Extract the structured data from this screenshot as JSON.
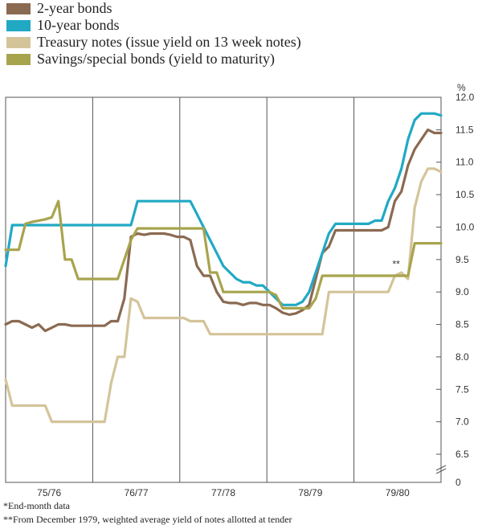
{
  "legend": [
    {
      "label": "2-year bonds",
      "color": "#8b6a52"
    },
    {
      "label": "10-year bonds",
      "color": "#21a9c4"
    },
    {
      "label": "Treasury notes (issue yield on 13 week notes)",
      "color": "#d4c49a"
    },
    {
      "label": "Savings/special bonds (yield to maturity)",
      "color": "#a8a44e"
    }
  ],
  "notes": {
    "end_month": "*End-month data",
    "december": "**From December 1979, weighted average yield of notes allotted at tender",
    "marker": "**"
  },
  "chart_data": {
    "type": "line",
    "title": "",
    "xlabel": "",
    "ylabel": "%",
    "ylim": [
      6.5,
      12.0
    ],
    "y_ticks": [
      12.0,
      11.5,
      11.0,
      10.5,
      10.0,
      9.5,
      9.0,
      8.5,
      8.0,
      7.5,
      7.0,
      6.5
    ],
    "y_zero_label": "0",
    "xlim": [
      0,
      66
    ],
    "x_periods": [
      "75/76",
      "76/77",
      "77/78",
      "78/79",
      "79/80"
    ],
    "series": [
      {
        "name": "2-year bonds",
        "color": "#8b6a52",
        "x": [
          0,
          1,
          2,
          3,
          4,
          5,
          6,
          7,
          8,
          9,
          10,
          11,
          12,
          13,
          14,
          15,
          16,
          17,
          18,
          19,
          20,
          21,
          22,
          23,
          24,
          25,
          26,
          27,
          28,
          29,
          30,
          31,
          32,
          33,
          34,
          35,
          36,
          37,
          38,
          39,
          40,
          41,
          42,
          43,
          44,
          45,
          46,
          47,
          48,
          49,
          50,
          51,
          52,
          53,
          54,
          55,
          56,
          57,
          58,
          59,
          60,
          61,
          62,
          63,
          64,
          65,
          66
        ],
        "values": [
          8.5,
          8.55,
          8.55,
          8.5,
          8.45,
          8.5,
          8.4,
          8.45,
          8.5,
          8.5,
          8.48,
          8.48,
          8.48,
          8.48,
          8.48,
          8.48,
          8.55,
          8.55,
          8.9,
          9.85,
          9.9,
          9.88,
          9.9,
          9.9,
          9.9,
          9.88,
          9.85,
          9.85,
          9.8,
          9.4,
          9.25,
          9.25,
          9.0,
          8.85,
          8.83,
          8.83,
          8.8,
          8.83,
          8.83,
          8.8,
          8.8,
          8.75,
          8.68,
          8.65,
          8.67,
          8.72,
          8.8,
          9.2,
          9.6,
          9.7,
          9.95,
          9.95,
          9.95,
          9.95,
          9.95,
          9.95,
          9.95,
          9.95,
          10.0,
          10.4,
          10.55,
          10.95,
          11.2,
          11.35,
          11.5,
          11.45,
          11.45
        ]
      },
      {
        "name": "10-year bonds",
        "color": "#21a9c4",
        "x": [
          0,
          1,
          2,
          3,
          4,
          5,
          6,
          7,
          8,
          9,
          10,
          11,
          12,
          13,
          14,
          15,
          16,
          17,
          18,
          19,
          20,
          21,
          22,
          23,
          24,
          25,
          26,
          27,
          28,
          29,
          30,
          31,
          32,
          33,
          34,
          35,
          36,
          37,
          38,
          39,
          40,
          41,
          42,
          43,
          44,
          45,
          46,
          47,
          48,
          49,
          50,
          51,
          52,
          53,
          54,
          55,
          56,
          57,
          58,
          59,
          60,
          61,
          62,
          63,
          64,
          65,
          66
        ],
        "values": [
          9.4,
          10.03,
          10.03,
          10.03,
          10.03,
          10.03,
          10.03,
          10.03,
          10.03,
          10.03,
          10.03,
          10.03,
          10.03,
          10.03,
          10.03,
          10.03,
          10.03,
          10.03,
          10.03,
          10.03,
          10.4,
          10.4,
          10.4,
          10.4,
          10.4,
          10.4,
          10.4,
          10.4,
          10.4,
          10.2,
          10.0,
          9.8,
          9.6,
          9.4,
          9.3,
          9.2,
          9.15,
          9.15,
          9.1,
          9.1,
          9.0,
          8.9,
          8.8,
          8.8,
          8.8,
          8.85,
          9.0,
          9.3,
          9.6,
          9.9,
          10.05,
          10.05,
          10.05,
          10.05,
          10.05,
          10.05,
          10.1,
          10.1,
          10.4,
          10.6,
          10.9,
          11.35,
          11.65,
          11.75,
          11.75,
          11.75,
          11.72
        ]
      },
      {
        "name": "Treasury notes (issue yield on 13 week notes)",
        "color": "#d4c49a",
        "x": [
          0,
          1,
          2,
          3,
          4,
          5,
          6,
          7,
          8,
          9,
          10,
          11,
          12,
          13,
          14,
          15,
          16,
          17,
          18,
          19,
          20,
          21,
          22,
          23,
          24,
          25,
          26,
          27,
          28,
          29,
          30,
          31,
          32,
          33,
          34,
          35,
          36,
          37,
          38,
          39,
          40,
          41,
          42,
          43,
          44,
          45,
          46,
          47,
          48,
          49,
          50,
          51,
          52,
          53,
          54,
          55,
          56,
          57,
          58,
          59,
          60,
          61,
          62,
          63,
          64,
          65,
          66
        ],
        "values": [
          7.65,
          7.25,
          7.25,
          7.25,
          7.25,
          7.25,
          7.25,
          7.0,
          7.0,
          7.0,
          7.0,
          7.0,
          7.0,
          7.0,
          7.0,
          7.0,
          7.6,
          8.0,
          8.0,
          8.9,
          8.85,
          8.6,
          8.6,
          8.6,
          8.6,
          8.6,
          8.6,
          8.6,
          8.55,
          8.55,
          8.55,
          8.35,
          8.35,
          8.35,
          8.35,
          8.35,
          8.35,
          8.35,
          8.35,
          8.35,
          8.35,
          8.35,
          8.35,
          8.35,
          8.35,
          8.35,
          8.35,
          8.35,
          8.35,
          9.0,
          9.0,
          9.0,
          9.0,
          9.0,
          9.0,
          9.0,
          9.0,
          9.0,
          9.0,
          9.25,
          9.3,
          9.2,
          10.3,
          10.7,
          10.9,
          10.9,
          10.85
        ]
      },
      {
        "name": "Savings/special bonds (yield to maturity)",
        "color": "#a8a44e",
        "x": [
          0,
          1,
          2,
          3,
          4,
          5,
          6,
          7,
          8,
          9,
          10,
          11,
          12,
          13,
          14,
          15,
          16,
          17,
          18,
          19,
          20,
          21,
          22,
          23,
          24,
          25,
          26,
          27,
          28,
          29,
          30,
          31,
          32,
          33,
          34,
          35,
          36,
          37,
          38,
          39,
          40,
          41,
          42,
          43,
          44,
          45,
          46,
          47,
          48,
          49,
          50,
          51,
          52,
          53,
          54,
          55,
          56,
          57,
          58,
          59,
          60,
          61,
          62,
          63,
          64,
          65,
          66
        ],
        "values": [
          9.65,
          9.65,
          9.65,
          10.05,
          10.08,
          10.1,
          10.12,
          10.15,
          10.4,
          9.5,
          9.5,
          9.2,
          9.2,
          9.2,
          9.2,
          9.2,
          9.2,
          9.2,
          9.5,
          9.8,
          9.98,
          9.98,
          9.98,
          9.98,
          9.98,
          9.98,
          9.98,
          9.98,
          9.98,
          9.98,
          9.98,
          9.3,
          9.3,
          9.0,
          9.0,
          9.0,
          9.0,
          9.0,
          9.0,
          9.0,
          9.0,
          8.95,
          8.75,
          8.75,
          8.75,
          8.75,
          8.75,
          8.9,
          9.25,
          9.25,
          9.25,
          9.25,
          9.25,
          9.25,
          9.25,
          9.25,
          9.25,
          9.25,
          9.25,
          9.25,
          9.25,
          9.25,
          9.75,
          9.75,
          9.75,
          9.75,
          9.75
        ]
      }
    ]
  }
}
